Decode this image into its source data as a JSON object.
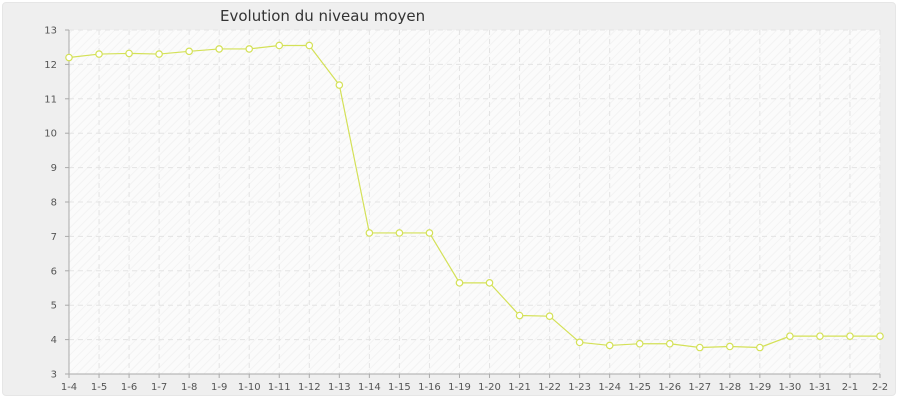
{
  "chart_data": {
    "type": "line",
    "title": "Evolution du niveau moyen",
    "xlabel": "",
    "ylabel": "",
    "ylim": [
      3,
      13
    ],
    "yticks": [
      3,
      4,
      5,
      6,
      7,
      8,
      9,
      10,
      11,
      12,
      13
    ],
    "grid": true,
    "categories": [
      "1-4",
      "1-5",
      "1-6",
      "1-7",
      "1-8",
      "1-9",
      "1-10",
      "1-11",
      "1-12",
      "1-13",
      "1-14",
      "1-15",
      "1-16",
      "1-19",
      "1-20",
      "1-21",
      "1-22",
      "1-23",
      "1-24",
      "1-25",
      "1-26",
      "1-27",
      "1-28",
      "1-29",
      "1-30",
      "1-31",
      "2-1",
      "2-2"
    ],
    "series": [
      {
        "values": [
          12.2,
          12.3,
          12.32,
          12.3,
          12.38,
          12.45,
          12.45,
          12.55,
          12.55,
          11.4,
          7.1,
          7.1,
          7.1,
          5.65,
          5.65,
          4.7,
          4.68,
          3.92,
          3.83,
          3.88,
          3.88,
          3.77,
          3.8,
          3.77,
          4.1,
          4.1,
          4.1,
          4.1
        ],
        "color": "#d4e157"
      }
    ],
    "colors": {
      "line": "#d4e157",
      "point_fill": "#ffffff",
      "plot_bg": "#fbfbfb",
      "frame_bg": "#efefef",
      "grid": "#e4e4e4"
    }
  }
}
